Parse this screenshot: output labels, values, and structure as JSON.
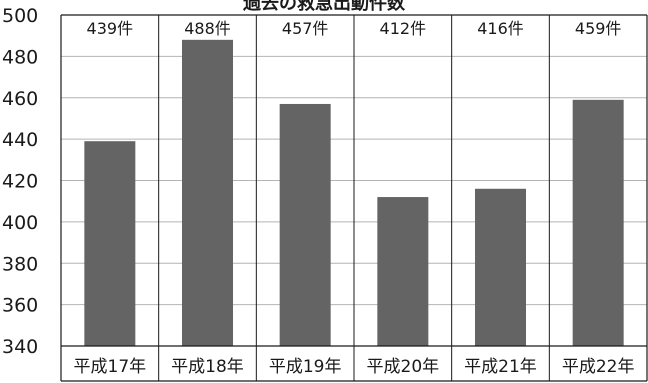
{
  "chart_data": {
    "type": "bar",
    "title": "過去の救急出動件数",
    "categories": [
      "平成17年",
      "平成18年",
      "平成19年",
      "平成20年",
      "平成21年",
      "平成22年"
    ],
    "values": [
      439,
      488,
      457,
      412,
      416,
      459
    ],
    "data_labels": [
      "439件",
      "488件",
      "457件",
      "412件",
      "416件",
      "459件"
    ],
    "yticks": [
      "340",
      "360",
      "380",
      "400",
      "420",
      "440",
      "460",
      "480",
      "500"
    ],
    "ylim": [
      340,
      500
    ],
    "grid": true,
    "bar_color": "#646464",
    "grid_color": "#b4b4b4",
    "axis_color": "#1a1a1a"
  }
}
